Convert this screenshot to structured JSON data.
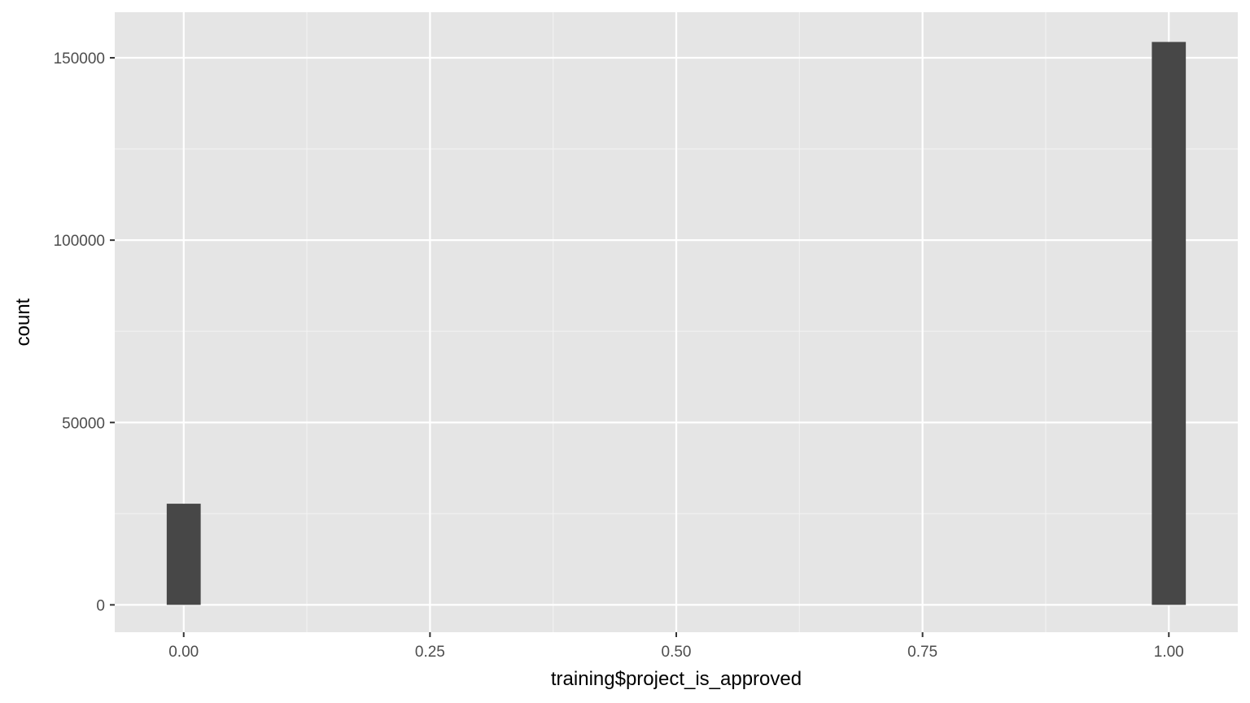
{
  "chart_data": {
    "type": "bar",
    "title": "",
    "xlabel": "training$project_is_approved",
    "ylabel": "count",
    "xlim": [
      -0.07,
      1.07
    ],
    "ylim": [
      -7500,
      162500
    ],
    "x_ticks": [
      0,
      0.25,
      0.5,
      0.75,
      1
    ],
    "x_tick_labels": [
      "0.00",
      "0.25",
      "0.50",
      "0.75",
      "1.00"
    ],
    "y_ticks": [
      0,
      50000,
      100000,
      150000
    ],
    "y_tick_labels": [
      "0",
      "50000",
      "100000",
      "150000"
    ],
    "bin_width": 0.0345,
    "bars": [
      {
        "x": 0,
        "value": 27734
      },
      {
        "x": 1,
        "value": 154346
      }
    ],
    "grid": true,
    "colors": {
      "panel_background": "#e5e5e5",
      "grid_major": "#ffffff",
      "grid_minor": "#f2f2f2",
      "bar_fill": "#474747"
    }
  }
}
